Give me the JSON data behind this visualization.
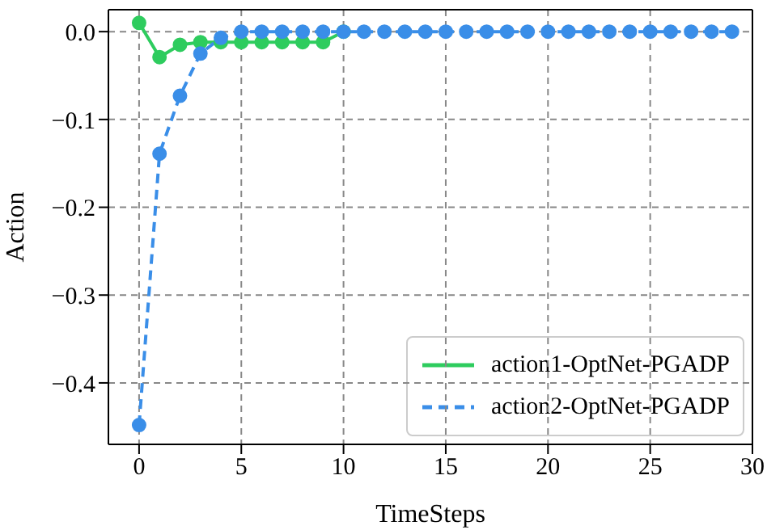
{
  "chart_data": {
    "type": "line",
    "xlabel": "TimeSteps",
    "ylabel": "Action",
    "xlim": [
      -1.5,
      30
    ],
    "xticks": [
      0,
      5,
      10,
      15,
      20,
      25,
      30
    ],
    "ylim": [
      -0.47,
      0.025
    ],
    "yticks": [
      {
        "value": 0,
        "label": "0.0"
      },
      {
        "value": -0.1,
        "label": "−0.1"
      },
      {
        "value": -0.2,
        "label": "−0.2"
      },
      {
        "value": -0.3,
        "label": "−0.3"
      },
      {
        "value": -0.4,
        "label": "−0.4"
      }
    ],
    "grid": true,
    "legend": "bottom right",
    "marker": "circle",
    "series": [
      {
        "name": "action1-OptNet-PGADP",
        "color": "#2ecc5e",
        "line_style": "solid",
        "x": [
          0,
          1,
          2,
          3,
          4,
          5,
          6,
          7,
          8,
          9,
          10
        ],
        "values": [
          0.01,
          -0.029,
          -0.015,
          -0.012,
          -0.012,
          -0.012,
          -0.012,
          -0.012,
          -0.012,
          -0.012,
          0
        ]
      },
      {
        "name": "action2-OptNet-PGADP",
        "color": "#3a8ee8",
        "line_style": "dashed",
        "x": [
          0,
          1,
          2,
          3,
          4,
          5,
          6,
          7,
          8,
          9,
          10,
          11,
          12,
          13,
          14,
          15,
          16,
          17,
          18,
          19,
          20,
          21,
          22,
          23,
          24,
          25,
          26,
          27,
          28,
          29
        ],
        "values": [
          -0.448,
          -0.139,
          -0.073,
          -0.025,
          -0.007,
          0,
          0,
          0,
          0,
          0,
          0,
          0,
          0,
          0,
          0,
          0,
          0,
          0,
          0,
          0,
          0,
          0,
          0,
          0,
          0,
          0,
          0,
          0,
          0,
          0
        ]
      }
    ]
  }
}
